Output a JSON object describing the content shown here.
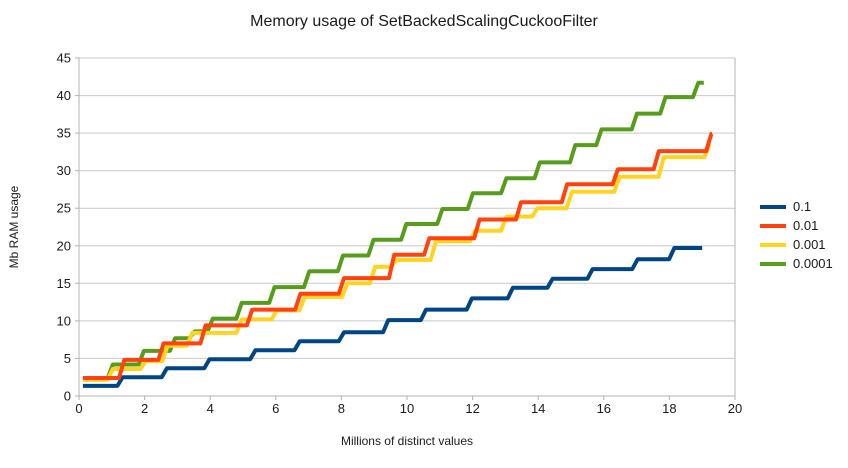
{
  "chart_data": {
    "type": "line",
    "line_style": "step",
    "title": "Memory usage of SetBackedScalingCuckooFilter",
    "xlabel": "Millions of distinct values",
    "ylabel": "Mb RAM usage",
    "xlim": [
      0,
      20
    ],
    "ylim": [
      0,
      45
    ],
    "x_ticks": [
      0,
      2,
      4,
      6,
      8,
      10,
      12,
      14,
      16,
      18,
      20
    ],
    "y_ticks": [
      0,
      5,
      10,
      15,
      20,
      25,
      30,
      35,
      40,
      45
    ],
    "grid": "horizontal",
    "legend_position": "right",
    "colors": {
      "axis": "#b3b3b3",
      "gridline": "#c9c9c9",
      "text": "#1a1a1a"
    },
    "series": [
      {
        "name": "0.1",
        "color": "#004586",
        "z": 0,
        "end_x": 19.0,
        "steps": [
          [
            0.12,
            1.35
          ],
          [
            1.25,
            2.5
          ],
          [
            2.6,
            3.7
          ],
          [
            3.9,
            4.9
          ],
          [
            5.3,
            6.1
          ],
          [
            6.65,
            7.3
          ],
          [
            8.0,
            8.5
          ],
          [
            9.35,
            10.1
          ],
          [
            10.5,
            11.5
          ],
          [
            11.9,
            13.0
          ],
          [
            13.15,
            14.4
          ],
          [
            14.36,
            15.6
          ],
          [
            15.58,
            16.9
          ],
          [
            16.95,
            18.2
          ],
          [
            18.07,
            19.7
          ]
        ]
      },
      {
        "name": "0.01",
        "color": "#ff420e",
        "z": 3,
        "end_x": 19.3,
        "steps": [
          [
            0.12,
            2.4
          ],
          [
            1.3,
            4.8
          ],
          [
            2.5,
            7.0
          ],
          [
            3.78,
            9.4
          ],
          [
            5.2,
            11.5
          ],
          [
            6.67,
            13.6
          ],
          [
            8.0,
            15.7
          ],
          [
            9.53,
            18.8
          ],
          [
            10.6,
            21.0
          ],
          [
            12.13,
            23.5
          ],
          [
            13.4,
            25.8
          ],
          [
            14.8,
            28.2
          ],
          [
            16.35,
            30.2
          ],
          [
            17.6,
            32.6
          ],
          [
            19.2,
            34.9
          ]
        ]
      },
      {
        "name": "0.001",
        "color": "#ffd320",
        "z": 2,
        "end_x": 19.25,
        "steps": [
          [
            0.12,
            2.15
          ],
          [
            0.95,
            3.6
          ],
          [
            1.95,
            4.65
          ],
          [
            2.62,
            6.7
          ],
          [
            3.37,
            8.4
          ],
          [
            4.88,
            10.2
          ],
          [
            5.95,
            11.4
          ],
          [
            6.8,
            13.2
          ],
          [
            8.1,
            15.0
          ],
          [
            8.95,
            17.2
          ],
          [
            9.6,
            18.1
          ],
          [
            10.8,
            20.6
          ],
          [
            12.0,
            22.0
          ],
          [
            12.95,
            23.9
          ],
          [
            13.9,
            25.0
          ],
          [
            14.95,
            27.2
          ],
          [
            16.4,
            29.2
          ],
          [
            17.75,
            31.8
          ],
          [
            19.15,
            33.6
          ]
        ]
      },
      {
        "name": "0.0001",
        "color": "#579d1c",
        "z": 1,
        "end_x": 19.05,
        "steps": [
          [
            0.12,
            2.3
          ],
          [
            0.95,
            4.2
          ],
          [
            1.9,
            6.0
          ],
          [
            2.85,
            7.7
          ],
          [
            3.45,
            8.6
          ],
          [
            4.0,
            10.3
          ],
          [
            4.88,
            12.4
          ],
          [
            5.88,
            14.5
          ],
          [
            6.94,
            16.6
          ],
          [
            7.97,
            18.7
          ],
          [
            8.9,
            20.8
          ],
          [
            9.9,
            22.9
          ],
          [
            11.0,
            24.9
          ],
          [
            11.93,
            27.0
          ],
          [
            12.95,
            29.0
          ],
          [
            13.97,
            31.1
          ],
          [
            15.05,
            33.4
          ],
          [
            15.85,
            35.5
          ],
          [
            16.93,
            37.6
          ],
          [
            17.8,
            39.8
          ],
          [
            18.8,
            41.7
          ]
        ]
      }
    ]
  }
}
